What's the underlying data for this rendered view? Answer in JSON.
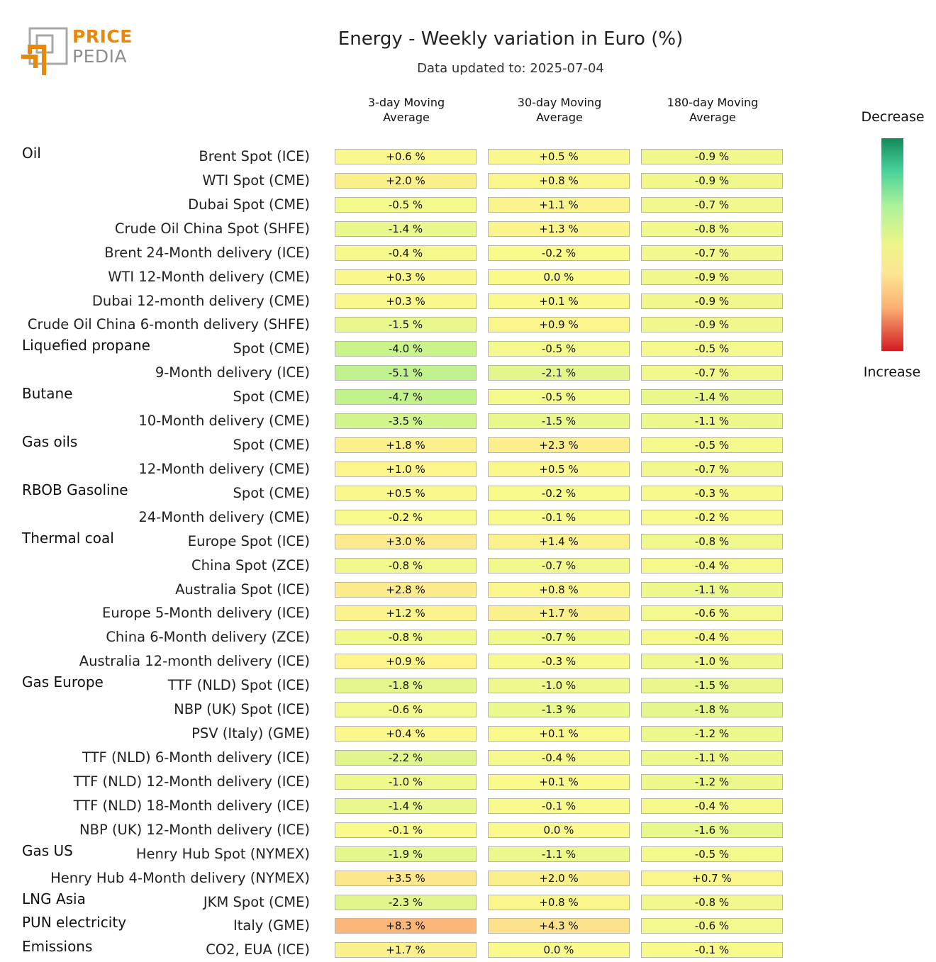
{
  "header": {
    "logo_line1": "PRICE",
    "logo_line2": "PEDIA",
    "title": "Energy - Weekly variation in Euro (%)",
    "subtitle": "Data updated to: 2025-07-04"
  },
  "legend": {
    "top": "Decrease",
    "bottom": "Increase",
    "colors": [
      "#128a59",
      "#47d19a",
      "#aef29a",
      "#eef58a",
      "#fde492",
      "#fbae72",
      "#d41a23"
    ]
  },
  "chart_data": {
    "type": "table",
    "columns": [
      {
        "line1": "3-day Moving",
        "line2": "Average"
      },
      {
        "line1": "30-day Moving",
        "line2": "Average"
      },
      {
        "line1": "180-day Moving",
        "line2": "Average"
      }
    ],
    "groups": [
      "Oil",
      "Liquefied propane",
      "Butane",
      "Gas oils",
      "RBOB Gasoline",
      "Thermal coal",
      "Gas Europe",
      "Gas US",
      "LNG Asia",
      "PUN electricity",
      "Emissions"
    ],
    "rows": [
      {
        "group": "Oil",
        "label": "Brent Spot (ICE)",
        "values": [
          0.6,
          0.5,
          -0.9
        ],
        "text": [
          "+0.6 %",
          "+0.5 %",
          "-0.9 %"
        ]
      },
      {
        "group": "",
        "label": "WTI Spot (CME)",
        "values": [
          2.0,
          0.8,
          -0.9
        ],
        "text": [
          "+2.0 %",
          "+0.8 %",
          "-0.9 %"
        ]
      },
      {
        "group": "",
        "label": "Dubai Spot (CME)",
        "values": [
          -0.5,
          1.1,
          -0.7
        ],
        "text": [
          "-0.5 %",
          "+1.1 %",
          "-0.7 %"
        ]
      },
      {
        "group": "",
        "label": "Crude Oil China Spot (SHFE)",
        "values": [
          -1.4,
          1.3,
          -0.8
        ],
        "text": [
          "-1.4 %",
          "+1.3 %",
          "-0.8 %"
        ]
      },
      {
        "group": "",
        "label": "Brent 24-Month delivery (ICE)",
        "values": [
          -0.4,
          -0.2,
          -0.7
        ],
        "text": [
          "-0.4 %",
          "-0.2 %",
          "-0.7 %"
        ]
      },
      {
        "group": "",
        "label": "WTI 12-Month delivery (CME)",
        "values": [
          0.3,
          0.0,
          -0.9
        ],
        "text": [
          "+0.3 %",
          "0.0 %",
          "-0.9 %"
        ]
      },
      {
        "group": "",
        "label": "Dubai 12-month delivery (CME)",
        "values": [
          0.3,
          0.1,
          -0.9
        ],
        "text": [
          "+0.3 %",
          "+0.1 %",
          "-0.9 %"
        ]
      },
      {
        "group": "",
        "label": "Crude Oil China 6-month delivery (SHFE)",
        "values": [
          -1.5,
          0.9,
          -0.9
        ],
        "text": [
          "-1.5 %",
          "+0.9 %",
          "-0.9 %"
        ]
      },
      {
        "group": "Liquefied propane",
        "label": "Spot (CME)",
        "values": [
          -4.0,
          -0.5,
          -0.5
        ],
        "text": [
          "-4.0 %",
          "-0.5 %",
          "-0.5 %"
        ]
      },
      {
        "group": "",
        "label": "9-Month delivery (ICE)",
        "values": [
          -5.1,
          -2.1,
          -0.7
        ],
        "text": [
          "-5.1 %",
          "-2.1 %",
          "-0.7 %"
        ]
      },
      {
        "group": "Butane",
        "label": "Spot (CME)",
        "values": [
          -4.7,
          -0.5,
          -1.4
        ],
        "text": [
          "-4.7 %",
          "-0.5 %",
          "-1.4 %"
        ]
      },
      {
        "group": "",
        "label": "10-Month delivery (CME)",
        "values": [
          -3.5,
          -1.5,
          -1.1
        ],
        "text": [
          "-3.5 %",
          "-1.5 %",
          "-1.1 %"
        ]
      },
      {
        "group": "Gas oils",
        "label": "Spot (CME)",
        "values": [
          1.8,
          2.3,
          -0.5
        ],
        "text": [
          "+1.8 %",
          "+2.3 %",
          "-0.5 %"
        ]
      },
      {
        "group": "",
        "label": "12-Month delivery (CME)",
        "values": [
          1.0,
          0.5,
          -0.7
        ],
        "text": [
          "+1.0 %",
          "+0.5 %",
          "-0.7 %"
        ]
      },
      {
        "group": "RBOB Gasoline",
        "label": "Spot (CME)",
        "values": [
          0.5,
          -0.2,
          -0.3
        ],
        "text": [
          "+0.5 %",
          "-0.2 %",
          "-0.3 %"
        ]
      },
      {
        "group": "",
        "label": "24-Month delivery (CME)",
        "values": [
          -0.2,
          -0.1,
          -0.2
        ],
        "text": [
          "-0.2 %",
          "-0.1 %",
          "-0.2 %"
        ]
      },
      {
        "group": "Thermal coal",
        "label": "Europe Spot (ICE)",
        "values": [
          3.0,
          1.4,
          -0.8
        ],
        "text": [
          "+3.0 %",
          "+1.4 %",
          "-0.8 %"
        ]
      },
      {
        "group": "",
        "label": "China Spot (ZCE)",
        "values": [
          -0.8,
          -0.7,
          -0.4
        ],
        "text": [
          "-0.8 %",
          "-0.7 %",
          "-0.4 %"
        ]
      },
      {
        "group": "",
        "label": "Australia Spot (ICE)",
        "values": [
          2.8,
          0.8,
          -1.1
        ],
        "text": [
          "+2.8 %",
          "+0.8 %",
          "-1.1 %"
        ]
      },
      {
        "group": "",
        "label": "Europe 5-Month delivery (ICE)",
        "values": [
          1.2,
          1.7,
          -0.6
        ],
        "text": [
          "+1.2 %",
          "+1.7 %",
          "-0.6 %"
        ]
      },
      {
        "group": "",
        "label": "China 6-Month delivery (ZCE)",
        "values": [
          -0.8,
          -0.7,
          -0.4
        ],
        "text": [
          "-0.8 %",
          "-0.7 %",
          "-0.4 %"
        ]
      },
      {
        "group": "",
        "label": "Australia 12-month delivery (ICE)",
        "values": [
          0.9,
          -0.3,
          -1.0
        ],
        "text": [
          "+0.9 %",
          "-0.3 %",
          "-1.0 %"
        ]
      },
      {
        "group": "Gas Europe",
        "label": "TTF (NLD) Spot (ICE)",
        "values": [
          -1.8,
          -1.0,
          -1.5
        ],
        "text": [
          "-1.8 %",
          "-1.0 %",
          "-1.5 %"
        ]
      },
      {
        "group": "",
        "label": "NBP (UK) Spot (ICE)",
        "values": [
          -0.6,
          -1.3,
          -1.8
        ],
        "text": [
          "-0.6 %",
          "-1.3 %",
          "-1.8 %"
        ]
      },
      {
        "group": "",
        "label": "PSV (Italy) (GME)",
        "values": [
          0.4,
          0.1,
          -1.2
        ],
        "text": [
          "+0.4 %",
          "+0.1 %",
          "-1.2 %"
        ]
      },
      {
        "group": "",
        "label": "TTF (NLD) 6-Month delivery (ICE)",
        "values": [
          -2.2,
          -0.4,
          -1.1
        ],
        "text": [
          "-2.2 %",
          "-0.4 %",
          "-1.1 %"
        ]
      },
      {
        "group": "",
        "label": "TTF (NLD) 12-Month delivery (ICE)",
        "values": [
          -1.0,
          0.1,
          -1.2
        ],
        "text": [
          "-1.0 %",
          "+0.1 %",
          "-1.2 %"
        ]
      },
      {
        "group": "",
        "label": "TTF (NLD) 18-Month delivery (ICE)",
        "values": [
          -1.4,
          -0.1,
          -0.4
        ],
        "text": [
          "-1.4 %",
          "-0.1 %",
          "-0.4 %"
        ]
      },
      {
        "group": "",
        "label": "NBP (UK) 12-Month delivery (ICE)",
        "values": [
          -0.1,
          0.0,
          -1.6
        ],
        "text": [
          "-0.1 %",
          "0.0 %",
          "-1.6 %"
        ]
      },
      {
        "group": "Gas US",
        "label": "Henry Hub Spot (NYMEX)",
        "values": [
          -1.9,
          -1.1,
          -0.5
        ],
        "text": [
          "-1.9 %",
          "-1.1 %",
          "-0.5 %"
        ]
      },
      {
        "group": "",
        "label": "Henry Hub 4-Month delivery (NYMEX)",
        "values": [
          3.5,
          2.0,
          0.7
        ],
        "text": [
          "+3.5 %",
          "+2.0 %",
          "+0.7 %"
        ]
      },
      {
        "group": "LNG Asia",
        "label": "JKM Spot (CME)",
        "values": [
          -2.3,
          0.8,
          -0.8
        ],
        "text": [
          "-2.3 %",
          "+0.8 %",
          "-0.8 %"
        ]
      },
      {
        "group": "PUN electricity",
        "label": "Italy (GME)",
        "values": [
          8.3,
          4.3,
          -0.6
        ],
        "text": [
          "+8.3 %",
          "+4.3 %",
          "-0.6 %"
        ]
      },
      {
        "group": "Emissions",
        "label": "CO2, EUA (ICE)",
        "values": [
          1.7,
          0.0,
          -0.1
        ],
        "text": [
          "+1.7 %",
          "0.0 %",
          "-0.1 %"
        ]
      }
    ]
  }
}
